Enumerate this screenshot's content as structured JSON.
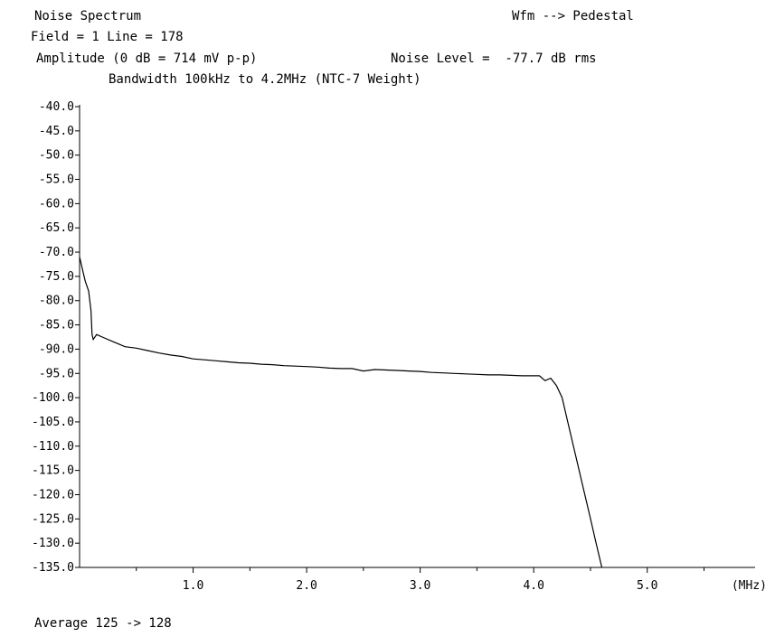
{
  "header": {
    "title": "Noise Spectrum",
    "mode": "Wfm --> Pedestal",
    "field_line": "Field = 1 Line = 178",
    "amplitude_ref": "Amplitude (0 dB = 714 mV p-p)",
    "noise_level": "Noise Level =  -77.7 dB rms",
    "bandwidth": "Bandwidth 100kHz to 4.2MHz (NTC-7 Weight)"
  },
  "footer": {
    "average": "Average 125 -> 128"
  },
  "chart_data": {
    "type": "line",
    "title": "Noise Spectrum",
    "xlabel": "(MHz)",
    "ylabel": "",
    "xlim": [
      0,
      5.95
    ],
    "ylim": [
      -135.0,
      -40.0
    ],
    "x_ticks": [
      1.0,
      2.0,
      3.0,
      4.0,
      5.0
    ],
    "x_tick_labels": [
      "1.0",
      "2.0",
      "3.0",
      "4.0",
      "5.0"
    ],
    "y_ticks": [
      -40,
      -45,
      -50,
      -55,
      -60,
      -65,
      -70,
      -75,
      -80,
      -85,
      -90,
      -95,
      -100,
      -105,
      -110,
      -115,
      -120,
      -125,
      -130,
      -135
    ],
    "y_tick_labels": [
      "-40.0",
      "-45.0",
      "-50.0",
      "-55.0",
      "-60.0",
      "-65.0",
      "-70.0",
      "-75.0",
      "-80.0",
      "-85.0",
      "-90.0",
      "-95.0",
      "-100.0",
      "-105.0",
      "-110.0",
      "-115.0",
      "-120.0",
      "-125.0",
      "-130.0",
      "-135.0"
    ],
    "grid": false,
    "series": [
      {
        "color": "#000000",
        "x": [
          0.0,
          0.02,
          0.05,
          0.08,
          0.1,
          0.11,
          0.12,
          0.15,
          0.2,
          0.3,
          0.4,
          0.5,
          0.6,
          0.7,
          0.8,
          0.9,
          1.0,
          1.1,
          1.2,
          1.3,
          1.4,
          1.5,
          1.6,
          1.7,
          1.8,
          1.9,
          2.0,
          2.1,
          2.2,
          2.3,
          2.4,
          2.5,
          2.6,
          2.7,
          2.8,
          2.9,
          3.0,
          3.1,
          3.2,
          3.3,
          3.4,
          3.5,
          3.6,
          3.7,
          3.8,
          3.9,
          4.0,
          4.05,
          4.1,
          4.15,
          4.2,
          4.25,
          4.3,
          4.35,
          4.4,
          4.45,
          4.5,
          4.55,
          4.6
        ],
        "y": [
          -71,
          -73,
          -76,
          -78,
          -82,
          -87,
          -88,
          -87,
          -87.5,
          -88.5,
          -89.5,
          -89.8,
          -90.3,
          -90.8,
          -91.2,
          -91.5,
          -92.0,
          -92.2,
          -92.4,
          -92.6,
          -92.8,
          -92.9,
          -93.1,
          -93.2,
          -93.4,
          -93.5,
          -93.6,
          -93.7,
          -93.9,
          -94.0,
          -94.0,
          -94.5,
          -94.2,
          -94.3,
          -94.4,
          -94.5,
          -94.6,
          -94.8,
          -94.9,
          -95.0,
          -95.1,
          -95.2,
          -95.3,
          -95.3,
          -95.4,
          -95.5,
          -95.5,
          -95.5,
          -96.5,
          -96.0,
          -97.5,
          -100.0,
          -105.0,
          -110.0,
          -115.0,
          -120.0,
          -125.0,
          -130.0,
          -135.0
        ]
      }
    ]
  }
}
